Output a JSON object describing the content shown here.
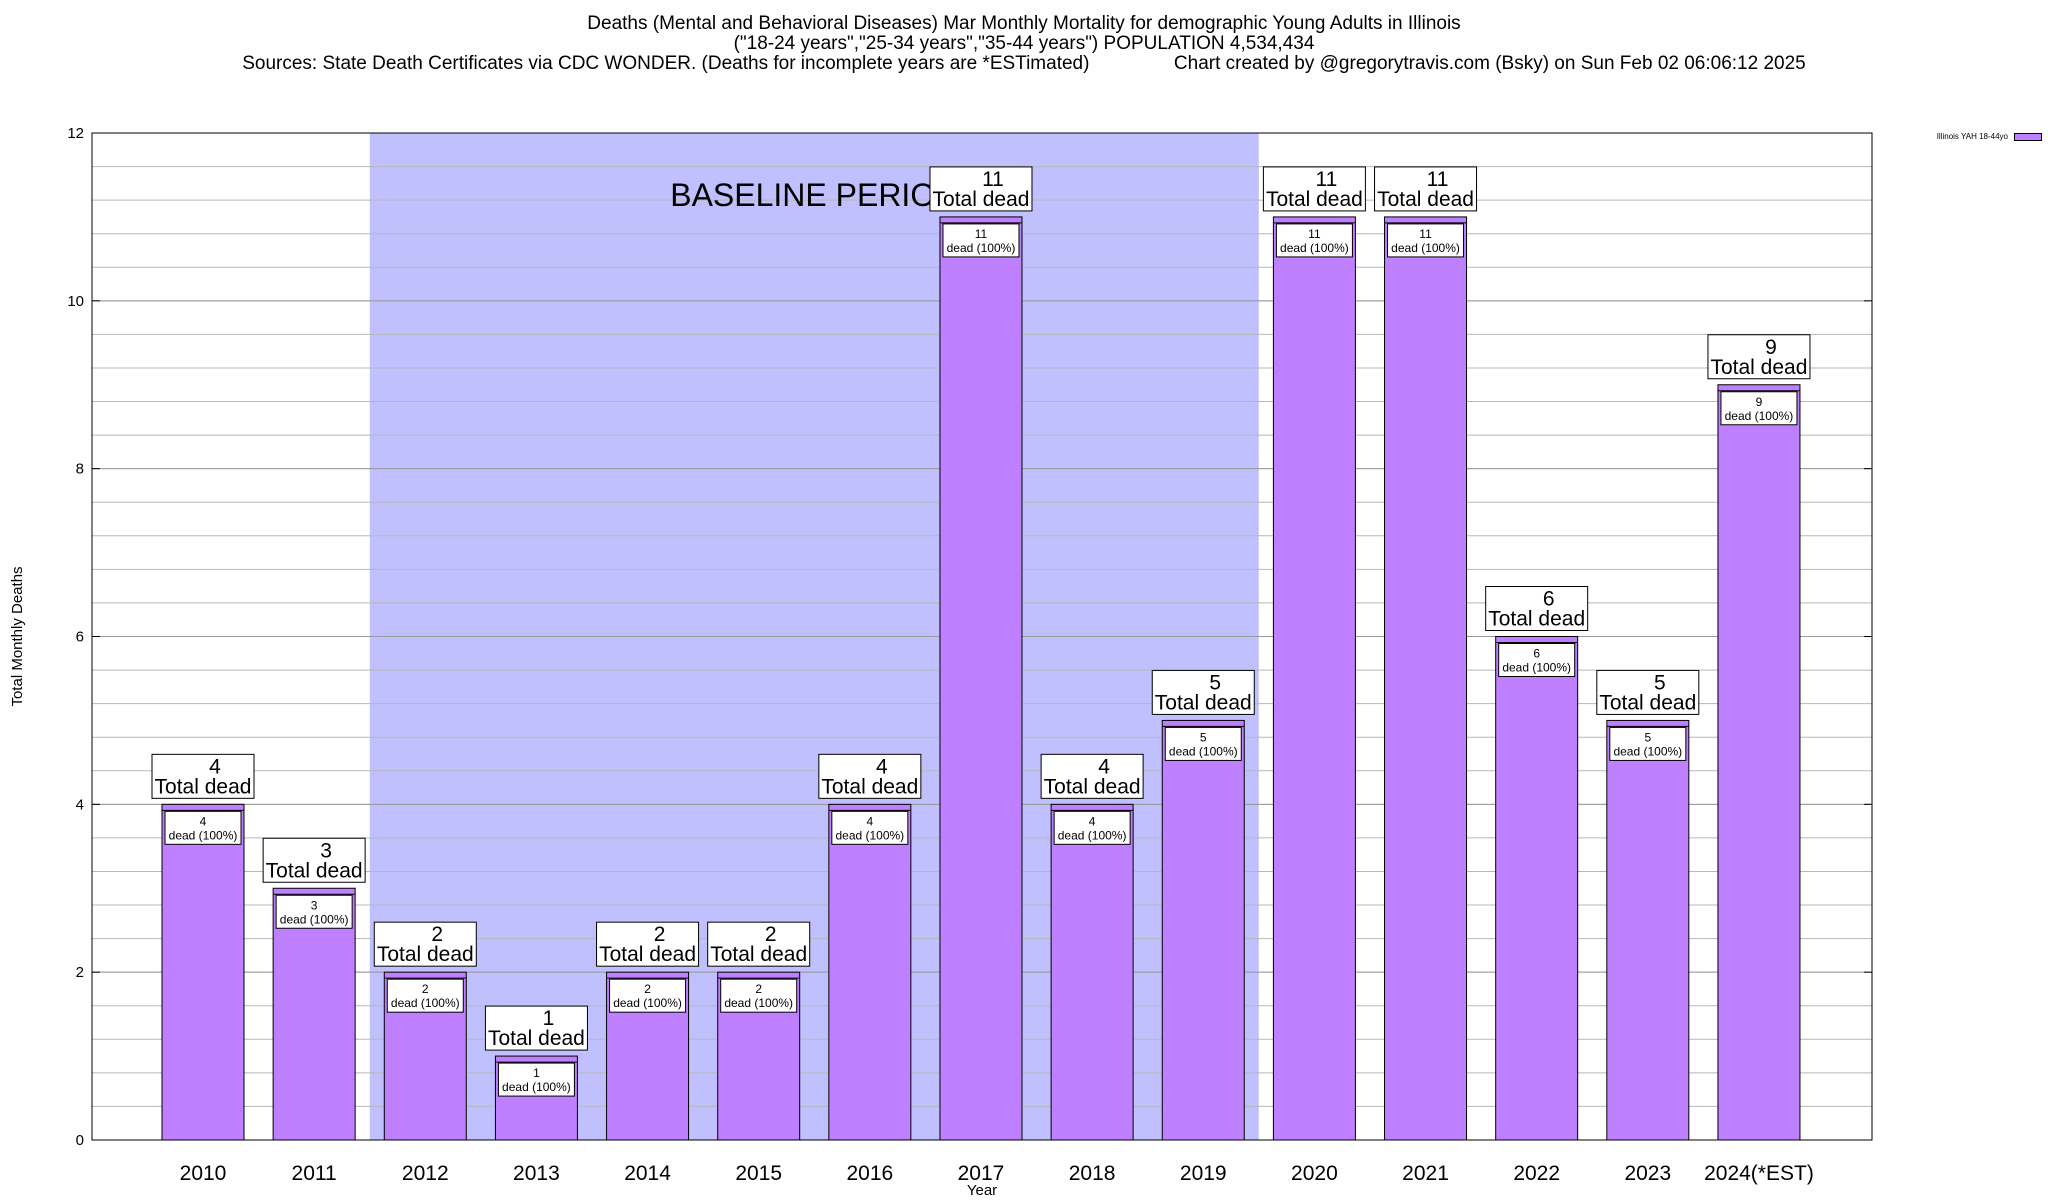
{
  "colors": {
    "bar": "#bf80ff",
    "baseline": "#c0c0ff",
    "grid": "#b8b8b8",
    "axis": "#000000"
  },
  "chart_data": {
    "type": "bar",
    "title": "Deaths (Mental and Behavioral Diseases) Mar Monthly Mortality for demographic Young Adults in Illinois",
    "subtitle": "(\"18-24 years\",\"25-34 years\",\"35-44 years\") POPULATION 4,534,434",
    "sources": "Sources: State Death Certificates via CDC WONDER. (Deaths for incomplete years are *ESTimated)",
    "credit": "Chart created by @gregorytravis.com (Bsky) on Sun Feb 02 06:06:12 2025",
    "xlabel": "Year",
    "ylabel": "Total Monthly Deaths",
    "ylim": [
      0,
      12
    ],
    "yticks": [
      0,
      2,
      4,
      6,
      8,
      10,
      12
    ],
    "grid": true,
    "legend_position": "top-right",
    "categories": [
      "2010",
      "2011",
      "2012",
      "2013",
      "2014",
      "2015",
      "2016",
      "2017",
      "2018",
      "2019",
      "2020",
      "2021",
      "2022",
      "2023",
      "2024(*EST)"
    ],
    "series": [
      {
        "name": "Illinois YAH 18-44yo",
        "values": [
          4,
          3,
          2,
          1,
          2,
          2,
          4,
          11,
          4,
          5,
          11,
          11,
          6,
          5,
          9
        ]
      }
    ],
    "bar_label_top": "Total dead",
    "bar_label_inner": "dead (100%)",
    "baseline_period": {
      "label": "BASELINE PERIOD",
      "start_year": "2012",
      "end_year": "2019"
    }
  }
}
